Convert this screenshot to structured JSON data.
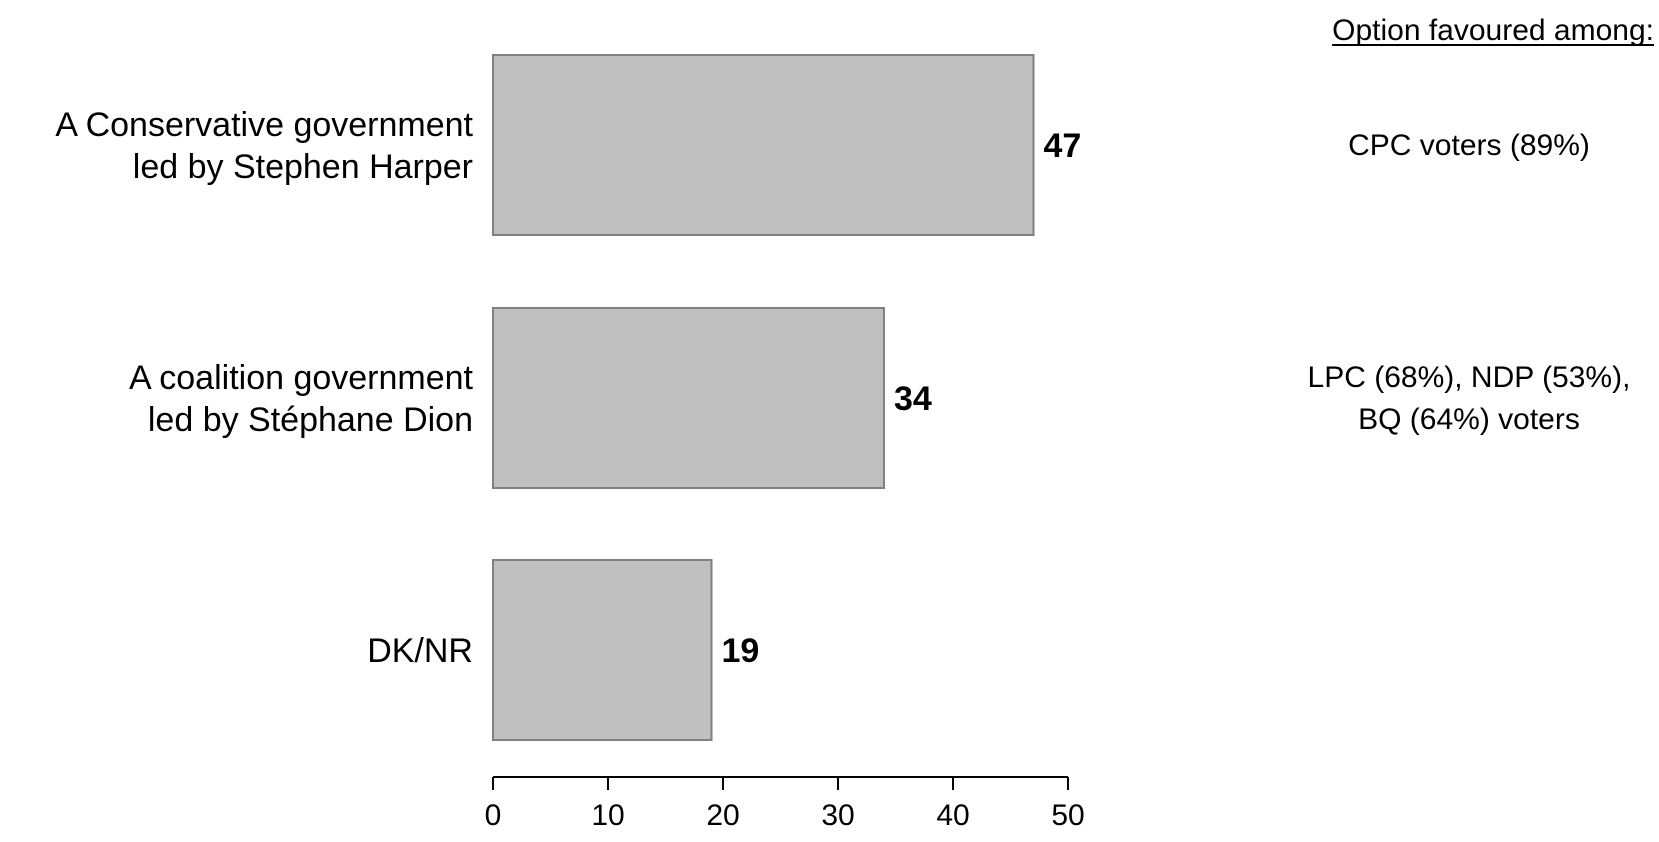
{
  "chart_data": {
    "type": "bar",
    "orientation": "horizontal",
    "categories": [
      [
        "A Conservative government",
        "led by Stephen Harper"
      ],
      [
        "A coalition government",
        "led by Stéphane Dion"
      ],
      [
        "DK/NR"
      ]
    ],
    "values": [
      47,
      34,
      19
    ],
    "value_labels": [
      "47",
      "34",
      "19"
    ],
    "xlim": [
      0,
      50
    ],
    "xticks": [
      0,
      10,
      20,
      30,
      40,
      50
    ],
    "grid": false,
    "bar_color": "#c0c0c0",
    "bar_edge_color": "#808080",
    "side_header": "Option favoured among:",
    "side_notes": [
      [
        "CPC voters (89%)"
      ],
      [
        "LPC (68%), NDP (53%),",
        "BQ (64%) voters"
      ],
      []
    ]
  }
}
